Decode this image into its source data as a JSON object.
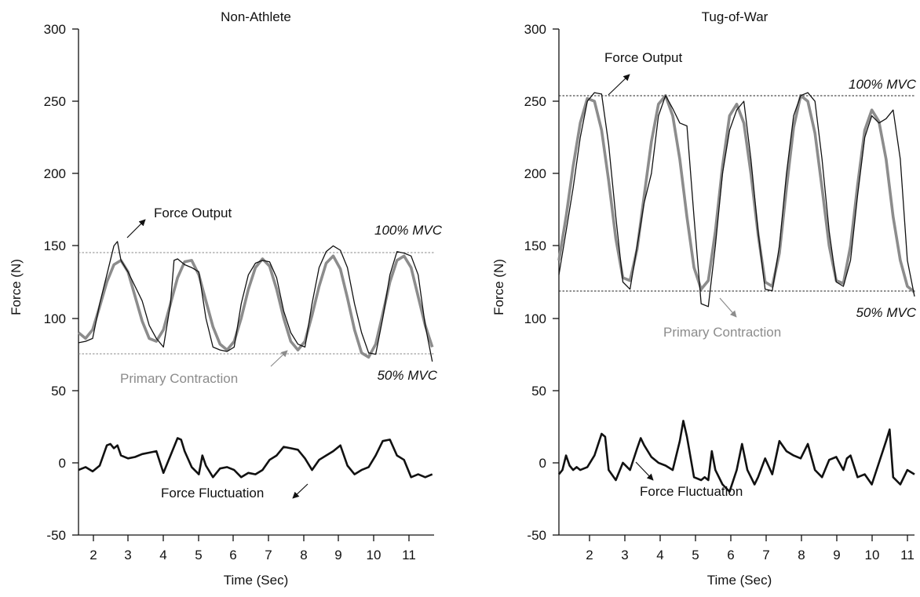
{
  "colors": {
    "force_output": "#111111",
    "primary_contraction": "#8c8c8c",
    "force_fluctuation": "#111111",
    "mvc_line": "#888888",
    "annotation_gray": "#8c8c8c",
    "annotation_dark": "#111111"
  },
  "chart_data": [
    {
      "type": "line",
      "title": "Non-Athlete",
      "xlabel": "Time (Sec)",
      "ylabel": "Force (N)",
      "xlim": [
        1.6,
        11.65
      ],
      "ylim": [
        -50,
        300
      ],
      "xticks": [
        2,
        3,
        4,
        5,
        6,
        7,
        8,
        9,
        10,
        11
      ],
      "yticks": [
        -50,
        0,
        50,
        100,
        150,
        200,
        250,
        300
      ],
      "reference_lines": [
        {
          "label": "100% MVC",
          "y": 145
        },
        {
          "label": "50% MVC",
          "y": 75
        }
      ],
      "annotations": [
        "Force Output",
        "Primary Contraction",
        "Force Fluctuation"
      ],
      "series": [
        {
          "role": "force_output",
          "x": [
            1.6,
            1.8,
            2.0,
            2.2,
            2.4,
            2.6,
            2.7,
            2.8,
            3.0,
            3.2,
            3.4,
            3.6,
            3.8,
            4.0,
            4.2,
            4.3,
            4.4,
            4.6,
            4.8,
            5.0,
            5.2,
            5.4,
            5.6,
            5.8,
            6.0,
            6.2,
            6.4,
            6.6,
            6.8,
            7.0,
            7.2,
            7.4,
            7.6,
            7.8,
            8.0,
            8.2,
            8.4,
            8.6,
            8.8,
            9.0,
            9.2,
            9.4,
            9.6,
            9.8,
            10.0,
            10.2,
            10.4,
            10.6,
            10.8,
            11.0,
            11.2,
            11.4,
            11.6
          ],
          "y": [
            83,
            84,
            86,
            110,
            130,
            150,
            153,
            140,
            132,
            122,
            112,
            95,
            86,
            80,
            110,
            140,
            141,
            137,
            135,
            132,
            100,
            80,
            78,
            77,
            80,
            110,
            130,
            138,
            140,
            139,
            128,
            105,
            90,
            82,
            80,
            110,
            135,
            146,
            150,
            147,
            135,
            110,
            90,
            76,
            75,
            100,
            130,
            146,
            145,
            143,
            130,
            95,
            70
          ]
        },
        {
          "role": "primary_contraction",
          "x": [
            1.6,
            1.8,
            2.0,
            2.2,
            2.4,
            2.6,
            2.8,
            3.0,
            3.2,
            3.4,
            3.6,
            3.8,
            4.0,
            4.2,
            4.4,
            4.6,
            4.8,
            5.0,
            5.2,
            5.4,
            5.6,
            5.8,
            6.0,
            6.2,
            6.4,
            6.6,
            6.8,
            7.0,
            7.2,
            7.4,
            7.6,
            7.8,
            8.0,
            8.2,
            8.4,
            8.6,
            8.8,
            9.0,
            9.2,
            9.4,
            9.6,
            9.8,
            10.0,
            10.2,
            10.4,
            10.6,
            10.8,
            11.0,
            11.2,
            11.4,
            11.6
          ],
          "y": [
            90,
            86,
            92,
            108,
            125,
            137,
            140,
            132,
            115,
            98,
            86,
            84,
            92,
            110,
            128,
            139,
            140,
            130,
            112,
            94,
            82,
            78,
            84,
            100,
            120,
            135,
            141,
            136,
            120,
            100,
            84,
            78,
            84,
            102,
            122,
            138,
            143,
            134,
            114,
            92,
            76,
            73,
            82,
            103,
            125,
            140,
            143,
            135,
            115,
            95,
            80
          ]
        },
        {
          "role": "force_fluctuation",
          "x": [
            1.6,
            1.8,
            2.0,
            2.2,
            2.4,
            2.5,
            2.6,
            2.7,
            2.8,
            3.0,
            3.2,
            3.4,
            3.6,
            3.8,
            4.0,
            4.2,
            4.4,
            4.5,
            4.6,
            4.8,
            5.0,
            5.1,
            5.2,
            5.4,
            5.6,
            5.8,
            6.0,
            6.2,
            6.4,
            6.6,
            6.8,
            7.0,
            7.2,
            7.4,
            7.6,
            7.8,
            8.0,
            8.2,
            8.4,
            8.6,
            8.8,
            9.0,
            9.2,
            9.4,
            9.6,
            9.8,
            10.0,
            10.2,
            10.4,
            10.6,
            10.8,
            11.0,
            11.2,
            11.4,
            11.6
          ],
          "y": [
            -5,
            -3,
            -6,
            -2,
            12,
            13,
            10,
            12,
            5,
            3,
            4,
            6,
            7,
            8,
            -7,
            5,
            17,
            16,
            8,
            -3,
            -8,
            5,
            -2,
            -10,
            -4,
            -3,
            -5,
            -10,
            -7,
            -8,
            -5,
            2,
            5,
            11,
            10,
            9,
            3,
            -5,
            2,
            5,
            8,
            12,
            -2,
            -8,
            -5,
            -3,
            5,
            15,
            16,
            5,
            2,
            -10,
            -8,
            -10,
            -8
          ]
        }
      ]
    },
    {
      "type": "line",
      "title": "Tug-of-War",
      "xlabel": "Time (Sec)",
      "ylabel": "Force (N)",
      "xlim": [
        1.2,
        11.2
      ],
      "ylim": [
        -50,
        300
      ],
      "xticks": [
        2,
        3,
        4,
        5,
        6,
        7,
        8,
        9,
        10,
        11
      ],
      "yticks": [
        -50,
        0,
        50,
        100,
        150,
        200,
        250,
        300
      ],
      "reference_lines": [
        {
          "label": "100% MVC",
          "y": 253
        },
        {
          "label": "50% MVC",
          "y": 118
        }
      ],
      "annotations": [
        "Force Output",
        "Primary Contraction",
        "Force Fluctuation"
      ],
      "series": [
        {
          "role": "force_output",
          "x": [
            1.2,
            1.4,
            1.6,
            1.8,
            2.0,
            2.2,
            2.4,
            2.6,
            2.8,
            3.0,
            3.2,
            3.4,
            3.6,
            3.8,
            4.0,
            4.2,
            4.4,
            4.6,
            4.8,
            5.0,
            5.2,
            5.4,
            5.6,
            5.8,
            6.0,
            6.2,
            6.4,
            6.6,
            6.8,
            7.0,
            7.2,
            7.4,
            7.6,
            7.8,
            8.0,
            8.2,
            8.4,
            8.6,
            8.8,
            9.0,
            9.2,
            9.4,
            9.6,
            9.8,
            10.0,
            10.2,
            10.4,
            10.6,
            10.8,
            11.0,
            11.2
          ],
          "y": [
            130,
            160,
            190,
            225,
            250,
            256,
            255,
            220,
            170,
            125,
            120,
            150,
            180,
            200,
            240,
            254,
            245,
            235,
            233,
            170,
            110,
            108,
            150,
            200,
            230,
            244,
            250,
            210,
            160,
            120,
            119,
            150,
            200,
            240,
            254,
            256,
            250,
            210,
            160,
            125,
            122,
            140,
            185,
            225,
            240,
            235,
            238,
            244,
            210,
            140,
            115
          ]
        },
        {
          "role": "primary_contraction",
          "x": [
            1.2,
            1.4,
            1.6,
            1.8,
            2.0,
            2.2,
            2.4,
            2.6,
            2.8,
            3.0,
            3.2,
            3.4,
            3.6,
            3.8,
            4.0,
            4.2,
            4.4,
            4.6,
            4.8,
            5.0,
            5.2,
            5.4,
            5.6,
            5.8,
            6.0,
            6.2,
            6.4,
            6.6,
            6.8,
            7.0,
            7.2,
            7.4,
            7.6,
            7.8,
            8.0,
            8.2,
            8.4,
            8.6,
            8.8,
            9.0,
            9.2,
            9.4,
            9.6,
            9.8,
            10.0,
            10.2,
            10.4,
            10.6,
            10.8,
            11.0,
            11.2
          ],
          "y": [
            140,
            170,
            205,
            235,
            252,
            250,
            230,
            195,
            155,
            128,
            126,
            148,
            185,
            222,
            248,
            254,
            240,
            210,
            170,
            135,
            120,
            126,
            160,
            205,
            240,
            248,
            235,
            200,
            158,
            125,
            122,
            145,
            190,
            232,
            254,
            250,
            228,
            190,
            150,
            126,
            124,
            150,
            192,
            230,
            244,
            236,
            210,
            170,
            140,
            122,
            118
          ]
        },
        {
          "role": "force_fluctuation",
          "x": [
            1.2,
            1.3,
            1.4,
            1.5,
            1.6,
            1.7,
            1.8,
            2.0,
            2.2,
            2.4,
            2.5,
            2.6,
            2.8,
            3.0,
            3.2,
            3.4,
            3.5,
            3.6,
            3.8,
            4.0,
            4.2,
            4.4,
            4.6,
            4.7,
            4.8,
            5.0,
            5.2,
            5.3,
            5.4,
            5.5,
            5.6,
            5.8,
            6.0,
            6.2,
            6.35,
            6.5,
            6.7,
            6.8,
            7.0,
            7.2,
            7.4,
            7.6,
            7.8,
            8.0,
            8.2,
            8.4,
            8.6,
            8.8,
            9.0,
            9.2,
            9.3,
            9.4,
            9.6,
            9.8,
            10.0,
            10.2,
            10.4,
            10.5,
            10.6,
            10.8,
            11.0,
            11.2
          ],
          "y": [
            -8,
            -5,
            5,
            -2,
            -5,
            -3,
            -5,
            -3,
            5,
            20,
            18,
            -5,
            -12,
            0,
            -5,
            10,
            17,
            12,
            4,
            0,
            -2,
            -5,
            15,
            29,
            18,
            -10,
            -12,
            -10,
            -12,
            8,
            -5,
            -15,
            -20,
            -5,
            13,
            -5,
            -15,
            -10,
            3,
            -8,
            15,
            8,
            5,
            3,
            13,
            -5,
            -10,
            2,
            4,
            -5,
            3,
            5,
            -10,
            -8,
            -15,
            0,
            15,
            23,
            -10,
            -15,
            -5,
            -8
          ]
        }
      ]
    }
  ],
  "panels": [
    {
      "title": "Non-Athlete",
      "ylabel": "Force (N)",
      "xlabel": "Time (Sec)",
      "yticks": [
        "-50",
        "0",
        "50",
        "100",
        "150",
        "200",
        "250",
        "300"
      ],
      "xticks": [
        "2",
        "3",
        "4",
        "5",
        "6",
        "7",
        "8",
        "9",
        "10",
        "11"
      ],
      "label_force_output": "Force Output",
      "label_primary_contraction": "Primary Contraction",
      "label_force_fluctuation": "Force Fluctuation",
      "label_mvc_100": "100% MVC",
      "label_mvc_50": "50% MVC"
    },
    {
      "title": "Tug-of-War",
      "ylabel": "Force (N)",
      "xlabel": "Time (Sec)",
      "yticks": [
        "-50",
        "0",
        "50",
        "100",
        "150",
        "200",
        "250",
        "300"
      ],
      "xticks": [
        "2",
        "3",
        "4",
        "5",
        "6",
        "7",
        "8",
        "9",
        "10",
        "11"
      ],
      "label_force_output": "Force Output",
      "label_primary_contraction": "Primary Contraction",
      "label_force_fluctuation": "Force Fluctuation",
      "label_mvc_100": "100% MVC",
      "label_mvc_50": "50% MVC"
    }
  ]
}
